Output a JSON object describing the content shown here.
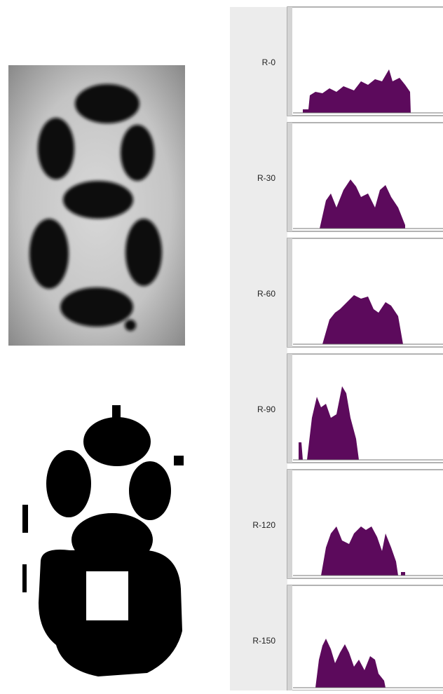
{
  "panels": [
    {
      "label": "R-0"
    },
    {
      "label": "R-30"
    },
    {
      "label": "R-60"
    },
    {
      "label": "R-90"
    },
    {
      "label": "R-120"
    },
    {
      "label": "R-150"
    }
  ]
}
